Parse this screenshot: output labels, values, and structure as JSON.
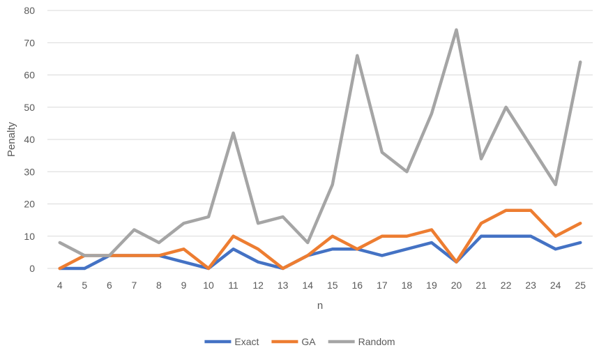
{
  "chart_data": {
    "type": "line",
    "xlabel": "n",
    "ylabel": "Penalty",
    "ylim": [
      0,
      80
    ],
    "yticks": [
      0,
      10,
      20,
      30,
      40,
      50,
      60,
      70,
      80
    ],
    "grid": true,
    "legend_position": "bottom",
    "x": [
      4,
      5,
      6,
      7,
      8,
      9,
      10,
      11,
      12,
      13,
      14,
      15,
      16,
      17,
      18,
      19,
      20,
      21,
      22,
      23,
      24,
      25
    ],
    "series": [
      {
        "name": "Exact",
        "color": "#4472C4",
        "values": [
          0,
          0,
          4,
          4,
          4,
          2,
          0,
          6,
          2,
          0,
          4,
          6,
          6,
          4,
          6,
          8,
          2,
          10,
          10,
          10,
          6,
          8
        ]
      },
      {
        "name": "GA",
        "color": "#ED7D31",
        "values": [
          0,
          4,
          4,
          4,
          4,
          6,
          0,
          10,
          6,
          0,
          4,
          10,
          6,
          10,
          10,
          12,
          2,
          14,
          18,
          18,
          10,
          14
        ]
      },
      {
        "name": "Random",
        "color": "#A5A5A5",
        "values": [
          8,
          4,
          4,
          12,
          8,
          14,
          16,
          42,
          14,
          16,
          8,
          26,
          66,
          36,
          30,
          48,
          74,
          34,
          50,
          38,
          26,
          64
        ]
      }
    ]
  }
}
